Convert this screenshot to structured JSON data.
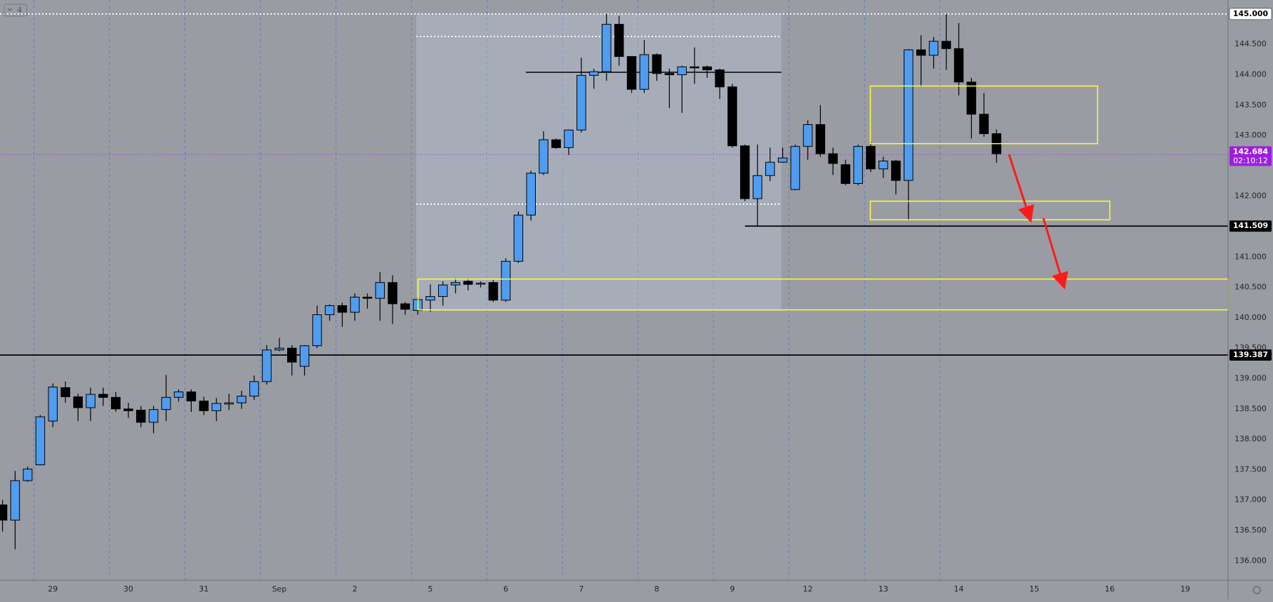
{
  "badge": "4",
  "chart_data": {
    "type": "candlestick",
    "open": [
      136.92,
      136.67,
      137.32,
      137.58,
      138.3,
      138.85,
      138.7,
      138.52,
      138.74,
      138.69,
      138.5,
      138.48,
      138.28,
      138.49,
      138.69,
      138.78,
      138.63,
      138.47,
      138.58,
      138.6,
      138.71,
      138.95,
      139.47,
      139.5,
      139.2,
      139.54,
      140.05,
      140.2,
      140.09,
      140.34,
      140.32,
      140.58,
      140.23,
      140.12,
      140.29,
      140.35,
      140.54,
      140.6,
      140.56,
      140.58,
      140.29,
      140.93,
      141.69,
      142.38,
      142.93,
      142.8,
      143.09,
      143.99,
      144.05,
      144.83,
      144.3,
      143.76,
      144.33,
      144.02,
      144.0,
      144.13,
      144.13,
      144.08,
      143.8,
      142.83,
      141.96,
      142.34,
      142.56,
      142.11,
      142.82,
      143.18,
      142.7,
      142.52,
      142.21,
      142.82,
      142.45,
      142.58,
      142.26,
      144.41,
      144.32,
      144.55,
      144.43,
      143.88,
      143.35,
      143.03
    ],
    "high": [
      137.0,
      137.48,
      137.55,
      138.4,
      138.92,
      138.95,
      138.75,
      138.85,
      138.85,
      138.78,
      138.6,
      138.55,
      138.55,
      139.06,
      138.82,
      138.82,
      138.7,
      138.68,
      138.75,
      138.8,
      139.05,
      139.55,
      139.67,
      139.55,
      139.55,
      140.2,
      140.22,
      140.25,
      140.4,
      140.4,
      140.75,
      140.7,
      140.26,
      140.34,
      140.55,
      140.6,
      140.65,
      140.65,
      140.6,
      140.62,
      140.98,
      141.75,
      142.42,
      143.07,
      142.95,
      143.1,
      144.28,
      144.1,
      145.0,
      144.97,
      144.3,
      144.57,
      144.35,
      144.1,
      144.15,
      144.45,
      144.15,
      144.1,
      143.85,
      142.85,
      142.85,
      142.8,
      142.8,
      142.85,
      143.25,
      143.5,
      142.8,
      142.6,
      142.85,
      142.9,
      142.65,
      142.6,
      144.42,
      144.65,
      144.62,
      145.0,
      144.85,
      143.95,
      143.7,
      143.1
    ],
    "low": [
      136.48,
      136.19,
      137.3,
      137.57,
      138.2,
      138.6,
      138.3,
      138.3,
      138.55,
      138.45,
      138.35,
      138.2,
      138.1,
      138.3,
      138.62,
      138.45,
      138.4,
      138.3,
      138.48,
      138.5,
      138.65,
      138.9,
      139.45,
      139.05,
      139.05,
      139.5,
      139.95,
      139.85,
      139.95,
      140.15,
      139.95,
      139.9,
      140.05,
      140.05,
      140.1,
      140.2,
      140.4,
      140.45,
      140.5,
      140.26,
      140.26,
      140.9,
      141.6,
      142.35,
      142.78,
      142.68,
      143.05,
      143.77,
      143.9,
      144.15,
      143.7,
      143.7,
      143.9,
      143.45,
      143.37,
      143.85,
      143.95,
      143.6,
      142.8,
      141.92,
      141.51,
      142.25,
      142.55,
      142.1,
      142.6,
      142.65,
      142.35,
      142.18,
      142.18,
      142.4,
      142.3,
      142.03,
      141.6,
      143.8,
      144.1,
      144.08,
      143.66,
      142.95,
      142.98,
      142.55
    ],
    "close": [
      136.67,
      137.32,
      137.51,
      138.37,
      138.86,
      138.7,
      138.52,
      138.74,
      138.69,
      138.5,
      138.47,
      138.28,
      138.49,
      138.69,
      138.78,
      138.63,
      138.47,
      138.59,
      138.6,
      138.71,
      138.95,
      139.47,
      139.5,
      139.27,
      139.54,
      140.05,
      140.2,
      140.09,
      140.34,
      140.32,
      140.58,
      140.23,
      140.14,
      140.3,
      140.35,
      140.54,
      140.58,
      140.55,
      140.57,
      140.29,
      140.93,
      141.69,
      142.38,
      142.93,
      142.8,
      143.09,
      143.99,
      144.05,
      144.83,
      144.3,
      143.76,
      144.33,
      144.02,
      144.0,
      144.13,
      144.12,
      144.08,
      143.8,
      142.83,
      141.96,
      142.34,
      142.56,
      142.63,
      142.82,
      143.18,
      142.7,
      142.54,
      142.21,
      142.82,
      142.45,
      142.58,
      142.26,
      144.41,
      144.32,
      144.55,
      144.43,
      143.88,
      143.35,
      143.03,
      142.7
    ],
    "up_color": "#4f9cf0",
    "down_color": "#000000",
    "xlim": [
      -0.2,
      97.4
    ],
    "xticks": [
      {
        "value": 4,
        "label": "29"
      },
      {
        "value": 10,
        "label": "30"
      },
      {
        "value": 16,
        "label": "31"
      },
      {
        "value": 22,
        "label": "Sep"
      },
      {
        "value": 28,
        "label": "2"
      },
      {
        "value": 34,
        "label": "5"
      },
      {
        "value": 40,
        "label": "6"
      },
      {
        "value": 46,
        "label": "7"
      },
      {
        "value": 52,
        "label": "8"
      },
      {
        "value": 58,
        "label": "9"
      },
      {
        "value": 64,
        "label": "12"
      },
      {
        "value": 70,
        "label": "13"
      },
      {
        "value": 76,
        "label": "14"
      },
      {
        "value": 82,
        "label": "15"
      },
      {
        "value": 88,
        "label": "16"
      },
      {
        "value": 94,
        "label": "19"
      }
    ],
    "xgrid": [
      2.5,
      8.5,
      14.5,
      20.5,
      26.5,
      32.5,
      38.5,
      44.5,
      50.5,
      56.5,
      62.5,
      68.5,
      74.5
    ],
    "ylim": [
      135.68,
      145.23
    ],
    "yticks": [
      {
        "value": 136,
        "label": "136.000"
      },
      {
        "value": 136.5,
        "label": "136.500"
      },
      {
        "value": 137,
        "label": "137.000"
      },
      {
        "value": 137.5,
        "label": "137.500"
      },
      {
        "value": 138,
        "label": "138.000"
      },
      {
        "value": 138.5,
        "label": "138.500"
      },
      {
        "value": 139,
        "label": "139.000"
      },
      {
        "value": 139.5,
        "label": "139.500"
      },
      {
        "value": 140,
        "label": "140.000"
      },
      {
        "value": 140.5,
        "label": "140.500"
      },
      {
        "value": 141,
        "label": "141.000"
      },
      {
        "value": 142,
        "label": "142.000"
      },
      {
        "value": 143,
        "label": "143.000"
      },
      {
        "value": 143.5,
        "label": "143.500"
      },
      {
        "value": 144,
        "label": "144.000"
      },
      {
        "value": 144.5,
        "label": "144.500"
      }
    ],
    "levels": [
      {
        "value": 145,
        "label": "145.000",
        "color": "#ffffff"
      },
      {
        "value": 141.509,
        "color": "#000000"
      },
      {
        "value": 139.387,
        "color": "#000000"
      }
    ],
    "last_price": {
      "value": 142.684,
      "countdown": "02:10:12",
      "color": "#9c1de0"
    }
  }
}
